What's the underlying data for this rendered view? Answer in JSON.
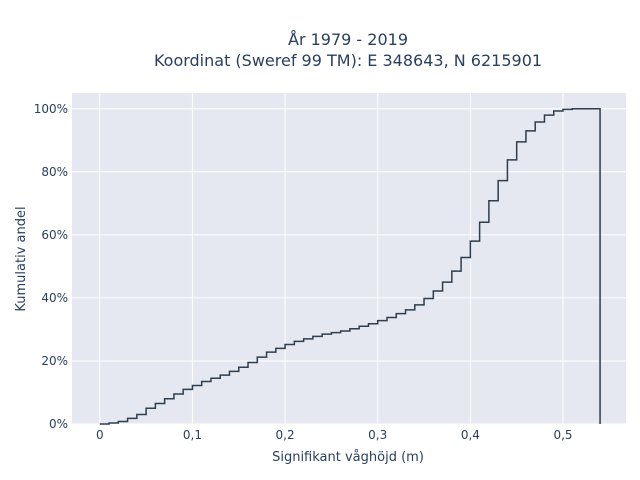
{
  "chart_data": {
    "type": "line",
    "line_shape": "step",
    "title": [
      "År 1979 - 2019",
      "Koordinat (Sweref 99 TM): E 348643, N 6215901"
    ],
    "xlabel": "Signifikant våghöjd (m)",
    "ylabel": "Kumulativ andel",
    "xlim": [
      -0.03,
      0.568
    ],
    "ylim": [
      0,
      1.05
    ],
    "xticks": [
      0,
      0.1,
      0.2,
      0.3,
      0.4,
      0.5
    ],
    "xtick_labels": [
      "0",
      "0,1",
      "0,2",
      "0,3",
      "0,4",
      "0,5"
    ],
    "yticks": [
      0,
      0.2,
      0.4,
      0.6,
      0.8,
      1.0
    ],
    "ytick_labels": [
      "0%",
      "20%",
      "40%",
      "60%",
      "80%",
      "100%"
    ],
    "grid": true,
    "colors": {
      "plot_bg": "#e5e8f0",
      "grid": "#ffffff",
      "line": "#2f3d4e"
    },
    "series": [
      {
        "x": [
          0,
          0.01,
          0.02,
          0.03,
          0.04,
          0.05,
          0.06,
          0.07,
          0.08,
          0.09,
          0.1,
          0.11,
          0.12,
          0.13,
          0.14,
          0.15,
          0.16,
          0.17,
          0.18,
          0.19,
          0.2,
          0.21,
          0.22,
          0.23,
          0.24,
          0.25,
          0.26,
          0.27,
          0.28,
          0.29,
          0.3,
          0.31,
          0.32,
          0.33,
          0.34,
          0.35,
          0.36,
          0.37,
          0.38,
          0.39,
          0.4,
          0.41,
          0.42,
          0.43,
          0.44,
          0.45,
          0.46,
          0.47,
          0.48,
          0.49,
          0.5,
          0.51,
          0.52,
          0.53,
          0.54
        ],
        "y": [
          0.0,
          0.003,
          0.008,
          0.018,
          0.03,
          0.05,
          0.065,
          0.08,
          0.095,
          0.11,
          0.122,
          0.135,
          0.145,
          0.155,
          0.167,
          0.18,
          0.195,
          0.212,
          0.228,
          0.24,
          0.252,
          0.262,
          0.27,
          0.278,
          0.285,
          0.29,
          0.295,
          0.302,
          0.31,
          0.318,
          0.328,
          0.338,
          0.35,
          0.362,
          0.378,
          0.398,
          0.422,
          0.45,
          0.485,
          0.528,
          0.58,
          0.64,
          0.708,
          0.772,
          0.838,
          0.895,
          0.93,
          0.958,
          0.98,
          0.993,
          0.998,
          1.0,
          1.0,
          1.0,
          0.0
        ]
      }
    ]
  }
}
